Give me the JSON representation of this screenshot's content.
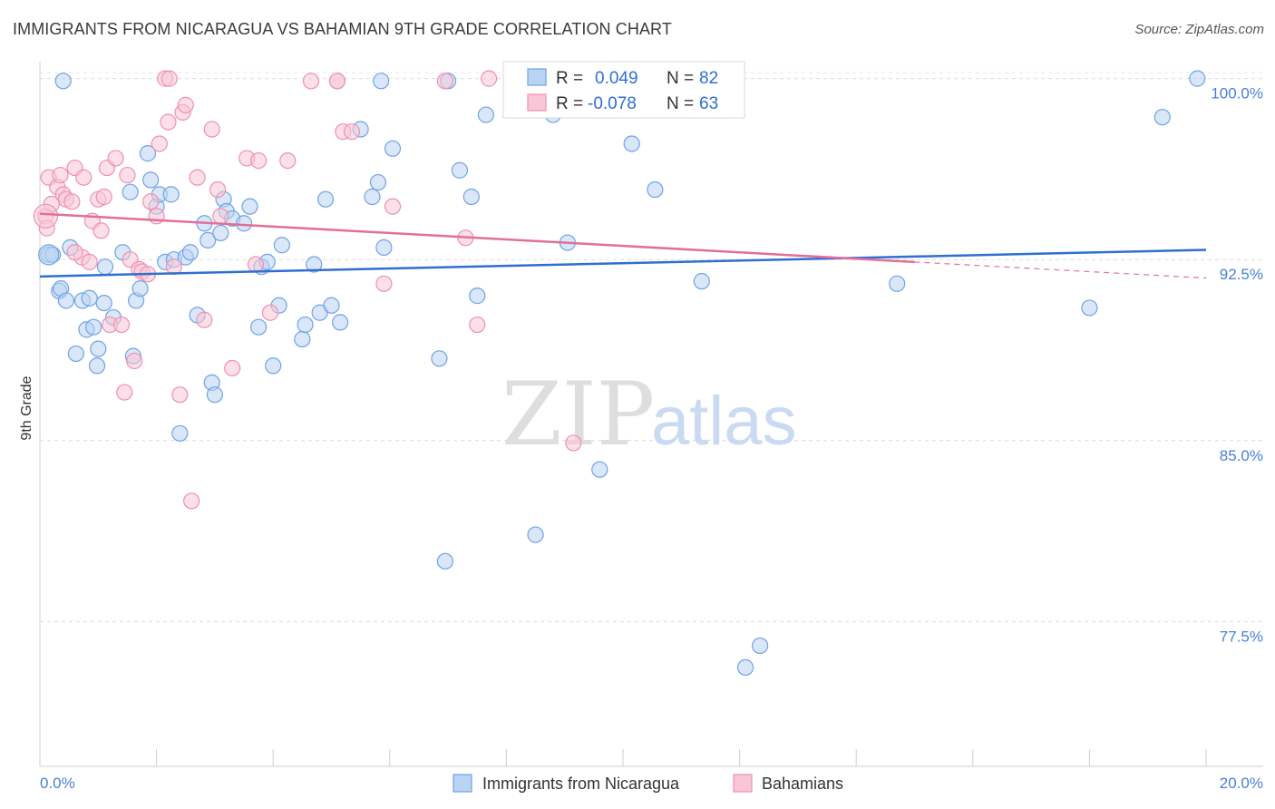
{
  "title": "IMMIGRANTS FROM NICARAGUA VS BAHAMIAN 9TH GRADE CORRELATION CHART",
  "source": "Source: ZipAtlas.com",
  "watermark": {
    "zip": "ZIP",
    "atlas": "atlas"
  },
  "chart_data": {
    "type": "scatter",
    "xlabel": "",
    "ylabel": "9th Grade",
    "xlim": [
      0,
      20
    ],
    "ylim": [
      71.5,
      100.7
    ],
    "x_tick_labels": [
      "0.0%",
      "20.0%"
    ],
    "y_ticks": [
      {
        "value": 100.0,
        "label": "100.0%"
      },
      {
        "value": 92.5,
        "label": "92.5%"
      },
      {
        "value": 85.0,
        "label": "85.0%"
      },
      {
        "value": 77.5,
        "label": "77.5%"
      }
    ],
    "legend_stats": [
      {
        "r_label": "R =",
        "r": "0.049",
        "n_label": "N =",
        "n": "82"
      },
      {
        "r_label": "R =",
        "r": "-0.078",
        "n_label": "N =",
        "n": "63"
      }
    ],
    "series": [
      {
        "name": "Immigrants from Nicaragua",
        "color": "#6fa3e6",
        "fill": "#b9d3f3",
        "trend": {
          "x0": 0.0,
          "y0": 91.8,
          "x1": 20.0,
          "y1": 92.9
        },
        "points": [
          [
            0.15,
            92.7
          ],
          [
            0.22,
            92.7
          ],
          [
            0.33,
            91.2
          ],
          [
            0.36,
            91.3
          ],
          [
            0.45,
            90.8
          ],
          [
            0.52,
            93.0
          ],
          [
            0.62,
            88.6
          ],
          [
            0.73,
            90.8
          ],
          [
            0.8,
            89.6
          ],
          [
            0.85,
            90.9
          ],
          [
            0.92,
            89.7
          ],
          [
            0.98,
            88.1
          ],
          [
            1.0,
            88.8
          ],
          [
            1.1,
            90.7
          ],
          [
            1.12,
            92.2
          ],
          [
            1.26,
            90.1
          ],
          [
            1.42,
            92.8
          ],
          [
            1.55,
            95.3
          ],
          [
            1.6,
            88.5
          ],
          [
            1.65,
            90.8
          ],
          [
            1.72,
            91.3
          ],
          [
            1.85,
            96.9
          ],
          [
            1.9,
            95.8
          ],
          [
            2.0,
            94.7
          ],
          [
            2.05,
            95.2
          ],
          [
            2.15,
            92.4
          ],
          [
            2.25,
            95.2
          ],
          [
            2.3,
            92.5
          ],
          [
            2.4,
            85.3
          ],
          [
            2.5,
            92.6
          ],
          [
            2.58,
            92.8
          ],
          [
            2.7,
            90.2
          ],
          [
            2.82,
            94.0
          ],
          [
            2.88,
            93.3
          ],
          [
            2.95,
            87.4
          ],
          [
            3.0,
            86.9
          ],
          [
            3.1,
            93.6
          ],
          [
            3.15,
            95.0
          ],
          [
            3.2,
            94.5
          ],
          [
            3.3,
            94.2
          ],
          [
            3.5,
            94.0
          ],
          [
            3.6,
            94.7
          ],
          [
            3.75,
            89.7
          ],
          [
            3.8,
            92.2
          ],
          [
            3.9,
            92.4
          ],
          [
            4.0,
            88.1
          ],
          [
            4.1,
            90.6
          ],
          [
            4.15,
            93.1
          ],
          [
            4.5,
            89.2
          ],
          [
            4.55,
            89.8
          ],
          [
            4.7,
            92.3
          ],
          [
            4.8,
            90.3
          ],
          [
            4.9,
            95.0
          ],
          [
            5.0,
            90.6
          ],
          [
            5.15,
            89.9
          ],
          [
            5.5,
            97.9
          ],
          [
            5.7,
            95.1
          ],
          [
            5.8,
            95.7
          ],
          [
            5.9,
            93.0
          ],
          [
            6.05,
            97.1
          ],
          [
            6.85,
            88.4
          ],
          [
            6.95,
            80.0
          ],
          [
            7.0,
            99.9
          ],
          [
            7.2,
            96.2
          ],
          [
            7.4,
            95.1
          ],
          [
            7.5,
            91.0
          ],
          [
            7.65,
            98.5
          ],
          [
            8.5,
            81.1
          ],
          [
            8.8,
            98.5
          ],
          [
            9.05,
            93.2
          ],
          [
            9.6,
            83.8
          ],
          [
            10.15,
            97.3
          ],
          [
            10.55,
            95.4
          ],
          [
            11.35,
            91.6
          ],
          [
            12.1,
            75.6
          ],
          [
            12.35,
            76.5
          ],
          [
            14.7,
            91.5
          ],
          [
            18.0,
            90.5
          ],
          [
            19.25,
            98.4
          ],
          [
            19.85,
            100.0
          ],
          [
            0.4,
            99.9
          ],
          [
            5.85,
            99.9
          ]
        ]
      },
      {
        "name": "Bahamians",
        "color": "#f08fb0",
        "fill": "#f8c6d6",
        "trend": {
          "x0": 0.0,
          "y0": 94.4,
          "x1": 15.0,
          "y1": 92.4
        },
        "points": [
          [
            0.1,
            94.3
          ],
          [
            0.12,
            93.8
          ],
          [
            0.15,
            95.9
          ],
          [
            0.2,
            94.8
          ],
          [
            0.3,
            95.5
          ],
          [
            0.35,
            96.0
          ],
          [
            0.4,
            95.2
          ],
          [
            0.45,
            95.0
          ],
          [
            0.55,
            94.9
          ],
          [
            0.6,
            96.3
          ],
          [
            0.72,
            92.6
          ],
          [
            0.75,
            95.9
          ],
          [
            0.85,
            92.4
          ],
          [
            0.9,
            94.1
          ],
          [
            1.0,
            95.0
          ],
          [
            1.05,
            93.7
          ],
          [
            1.15,
            96.3
          ],
          [
            1.2,
            89.8
          ],
          [
            1.3,
            96.7
          ],
          [
            1.4,
            89.8
          ],
          [
            1.45,
            87.0
          ],
          [
            1.5,
            96.0
          ],
          [
            1.55,
            92.5
          ],
          [
            1.62,
            88.3
          ],
          [
            1.7,
            92.1
          ],
          [
            1.75,
            92.0
          ],
          [
            1.85,
            91.9
          ],
          [
            1.9,
            94.9
          ],
          [
            2.0,
            94.3
          ],
          [
            2.05,
            97.3
          ],
          [
            2.15,
            100.0
          ],
          [
            2.2,
            98.2
          ],
          [
            2.22,
            100.0
          ],
          [
            2.3,
            92.2
          ],
          [
            2.4,
            86.9
          ],
          [
            2.45,
            98.6
          ],
          [
            2.5,
            98.9
          ],
          [
            2.6,
            82.5
          ],
          [
            2.7,
            95.9
          ],
          [
            2.82,
            90.0
          ],
          [
            2.95,
            97.9
          ],
          [
            3.05,
            95.4
          ],
          [
            3.1,
            94.3
          ],
          [
            3.3,
            88.0
          ],
          [
            3.55,
            96.7
          ],
          [
            3.7,
            92.3
          ],
          [
            3.75,
            96.6
          ],
          [
            3.95,
            90.3
          ],
          [
            4.25,
            96.6
          ],
          [
            4.65,
            99.9
          ],
          [
            5.1,
            99.9
          ],
          [
            5.2,
            97.8
          ],
          [
            5.35,
            97.8
          ],
          [
            5.9,
            91.5
          ],
          [
            6.05,
            94.7
          ],
          [
            7.3,
            93.4
          ],
          [
            7.5,
            89.8
          ],
          [
            7.7,
            100.0
          ],
          [
            9.15,
            84.9
          ],
          [
            0.6,
            92.8
          ],
          [
            1.1,
            95.1
          ],
          [
            5.1,
            99.9
          ],
          [
            6.95,
            99.9
          ]
        ]
      }
    ]
  }
}
